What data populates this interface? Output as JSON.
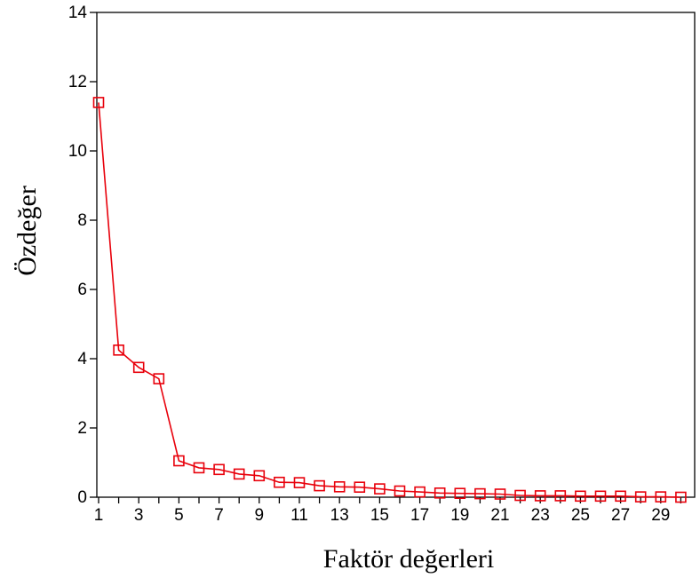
{
  "chart_data": {
    "type": "line",
    "title": "",
    "xlabel": "Faktör değerleri",
    "ylabel": "Özdeğer",
    "xlim": [
      1,
      30
    ],
    "ylim": [
      0,
      14
    ],
    "x_tick_labels": [
      "1",
      "3",
      "5",
      "7",
      "9",
      "11",
      "13",
      "15",
      "17",
      "19",
      "21",
      "23",
      "25",
      "27",
      "29"
    ],
    "y_tick_labels": [
      "0",
      "2",
      "4",
      "6",
      "8",
      "10",
      "12",
      "14"
    ],
    "grid": false,
    "legend": "none",
    "marker": "open-square",
    "series": [
      {
        "color": "#e8000b",
        "x": [
          1,
          2,
          3,
          4,
          5,
          6,
          7,
          8,
          9,
          10,
          11,
          12,
          13,
          14,
          15,
          16,
          17,
          18,
          19,
          20,
          21,
          22,
          23,
          24,
          25,
          26,
          27,
          28,
          29,
          30
        ],
        "values": [
          11.4,
          4.25,
          3.75,
          3.42,
          1.05,
          0.85,
          0.8,
          0.67,
          0.62,
          0.43,
          0.42,
          0.33,
          0.3,
          0.29,
          0.24,
          0.18,
          0.15,
          0.12,
          0.11,
          0.1,
          0.09,
          0.05,
          0.04,
          0.04,
          0.03,
          0.03,
          0.03,
          0.01,
          0.01,
          0.0
        ]
      }
    ]
  }
}
